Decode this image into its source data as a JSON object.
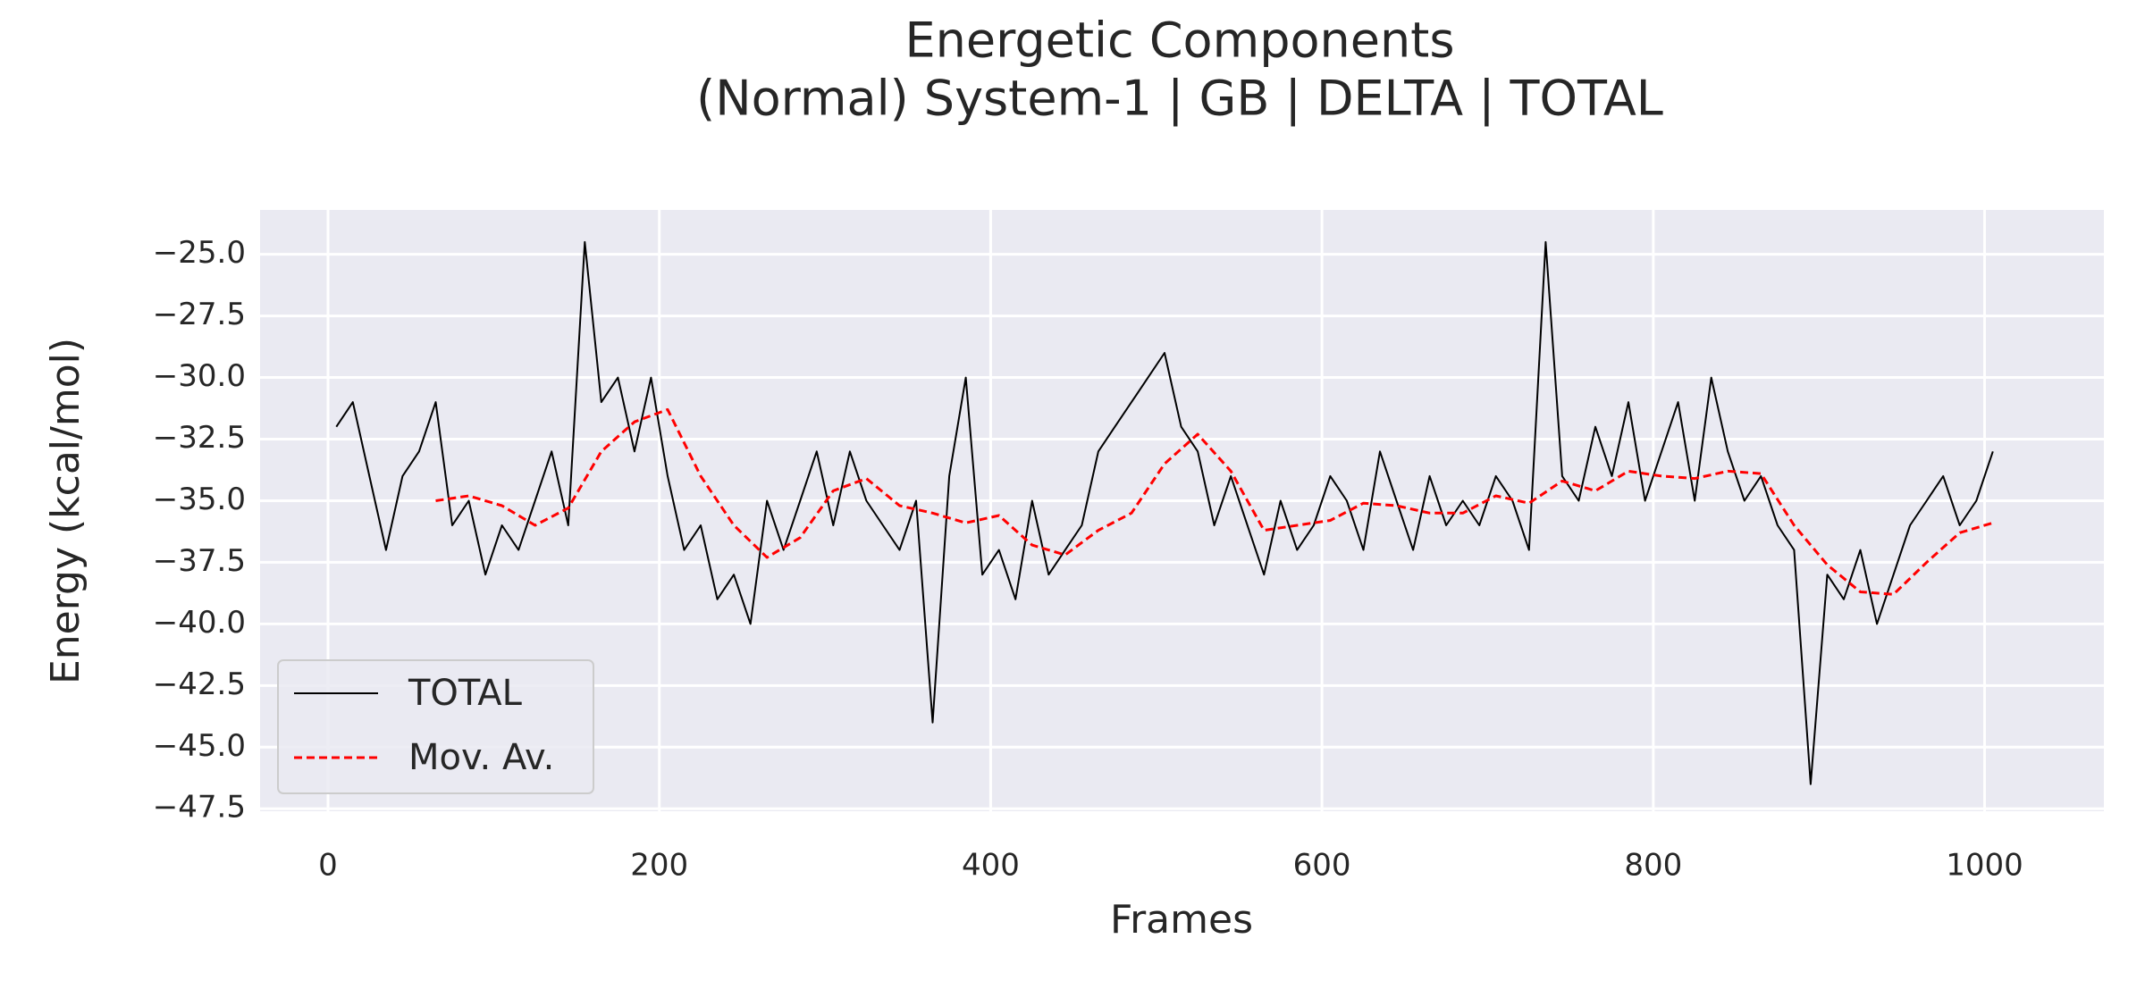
{
  "chart_data": {
    "type": "line",
    "title": "Energetic Components",
    "subtitle": "(Normal) System-1 | GB | DELTA | TOTAL",
    "x_label": "Frames",
    "y_label": "Energy (kcal/mol)",
    "xlim": [
      -41,
      1072
    ],
    "ylim": [
      -47.6,
      -23.2
    ],
    "xticks": [
      0,
      200,
      400,
      600,
      800,
      1000
    ],
    "yticks": [
      {
        "value": -25,
        "label": "−25.0"
      },
      {
        "value": -27.5,
        "label": "−27.5"
      },
      {
        "value": -30,
        "label": "−30.0"
      },
      {
        "value": -32.5,
        "label": "−32.5"
      },
      {
        "value": -35,
        "label": "−35.0"
      },
      {
        "value": -37.5,
        "label": "−37.5"
      },
      {
        "value": -40,
        "label": "−40.0"
      },
      {
        "value": -42.5,
        "label": "−42.5"
      },
      {
        "value": -45,
        "label": "−45.0"
      },
      {
        "value": -47.5,
        "label": "−47.5"
      }
    ],
    "grid": true,
    "legend": "lower left",
    "series": [
      {
        "name": "TOTAL",
        "color": "#000000",
        "style": "solid",
        "x": [
          5,
          15,
          25,
          35,
          45,
          55,
          65,
          75,
          85,
          95,
          105,
          115,
          125,
          135,
          145,
          155,
          165,
          175,
          185,
          195,
          205,
          215,
          225,
          235,
          245,
          255,
          265,
          275,
          285,
          295,
          305,
          315,
          325,
          335,
          345,
          355,
          365,
          375,
          385,
          395,
          405,
          415,
          425,
          435,
          445,
          455,
          465,
          475,
          485,
          495,
          505,
          515,
          525,
          535,
          545,
          555,
          565,
          575,
          585,
          595,
          605,
          615,
          625,
          635,
          645,
          655,
          665,
          675,
          685,
          695,
          705,
          715,
          725,
          735,
          745,
          755,
          765,
          775,
          785,
          795,
          805,
          815,
          825,
          835,
          845,
          855,
          865,
          875,
          885,
          895,
          905,
          915,
          925,
          935,
          945,
          955,
          965,
          975,
          985,
          995,
          1005
        ],
        "values": [
          -32,
          -31,
          -34,
          -37,
          -34,
          -33,
          -31,
          -36,
          -35,
          -38,
          -36,
          -37,
          -35,
          -33,
          -36,
          -24.5,
          -31,
          -30,
          -33,
          -30,
          -34,
          -37,
          -36,
          -39,
          -38,
          -40,
          -35,
          -37,
          -35,
          -33,
          -36,
          -33,
          -35,
          -36,
          -37,
          -35,
          -44,
          -34,
          -30,
          -38,
          -37,
          -39,
          -35,
          -38,
          -37,
          -36,
          -33,
          -32,
          -31,
          -30,
          -29,
          -32,
          -33,
          -36,
          -34,
          -36,
          -38,
          -35,
          -37,
          -36,
          -34,
          -35,
          -37,
          -33,
          -35,
          -37,
          -34,
          -36,
          -35,
          -36,
          -34,
          -35,
          -37,
          -24.5,
          -34,
          -35,
          -32,
          -34,
          -31,
          -35,
          -33,
          -31,
          -35,
          -30,
          -33,
          -35,
          -34,
          -36,
          -37,
          -46.5,
          -38,
          -39,
          -37,
          -40,
          -38,
          -36,
          -35,
          -34,
          -36,
          -35,
          -33
        ]
      },
      {
        "name": "Mov. Av.",
        "color": "#ff0000",
        "style": "dashed",
        "x": [
          65,
          85,
          105,
          125,
          145,
          165,
          185,
          205,
          225,
          245,
          265,
          285,
          305,
          325,
          345,
          365,
          385,
          405,
          425,
          445,
          465,
          485,
          505,
          525,
          545,
          565,
          585,
          605,
          625,
          645,
          665,
          685,
          705,
          725,
          745,
          765,
          785,
          805,
          825,
          845,
          865,
          885,
          905,
          925,
          945,
          965,
          985,
          1005
        ],
        "values": [
          -35,
          -34.8,
          -35.2,
          -36,
          -35.3,
          -33,
          -31.8,
          -31.3,
          -34,
          -36,
          -37.3,
          -36.5,
          -34.6,
          -34.1,
          -35.2,
          -35.5,
          -35.9,
          -35.6,
          -36.8,
          -37.2,
          -36.2,
          -35.5,
          -33.5,
          -32.3,
          -33.8,
          -36.2,
          -36,
          -35.8,
          -35.1,
          -35.2,
          -35.5,
          -35.5,
          -34.8,
          -35.1,
          -34.2,
          -34.6,
          -33.8,
          -34,
          -34.1,
          -33.8,
          -33.9,
          -36,
          -37.6,
          -38.7,
          -38.8,
          -37.5,
          -36.3,
          -35.9
        ]
      }
    ]
  }
}
